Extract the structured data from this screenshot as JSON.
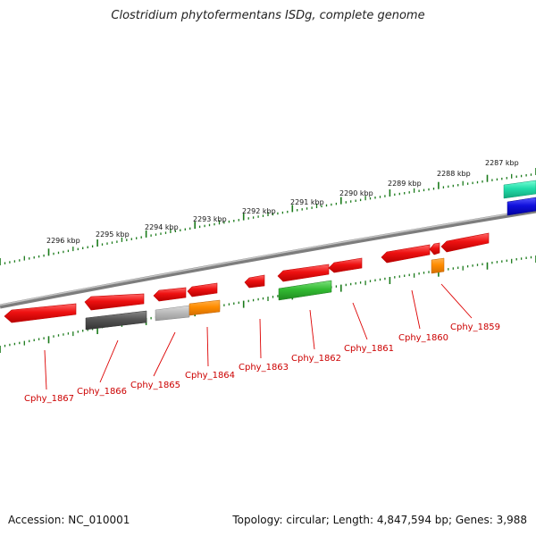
{
  "header": {
    "title": "Clostridium phytofermentans ISDg, complete genome"
  },
  "footer": {
    "accession": "Accession: NC_010001",
    "topology": "Topology: circular; Length: 4,847,594 bp; Genes: 3,988"
  },
  "colors": {
    "backbone": "#8a8a8a",
    "ticks": "#1a7a1a",
    "label": "#cc0000",
    "leader": "#dd0000",
    "red": "#ee1111",
    "darkgray": "#555555",
    "lightgray": "#bbbbbb",
    "orange": "#ff8c00",
    "green": "#33bb33",
    "teal": "#22ddaa",
    "blue": "#1111dd"
  },
  "ruler": {
    "unit": "kbp",
    "labels": [
      {
        "kbp": 2296,
        "text": "2296 kbp"
      },
      {
        "kbp": 2295,
        "text": "2295 kbp"
      },
      {
        "kbp": 2294,
        "text": "2294 kbp"
      },
      {
        "kbp": 2293,
        "text": "2293 kbp"
      },
      {
        "kbp": 2292,
        "text": "2292 kbp"
      },
      {
        "kbp": 2291,
        "text": "2291 kbp"
      },
      {
        "kbp": 2290,
        "text": "2290 kbp"
      },
      {
        "kbp": 2289,
        "text": "2289 kbp"
      },
      {
        "kbp": 2288,
        "text": "2288 kbp"
      },
      {
        "kbp": 2287,
        "text": "2287 kbp"
      }
    ]
  },
  "gene_labels": [
    {
      "id": "cphy-1867",
      "text": "Cphy_1867"
    },
    {
      "id": "cphy-1866",
      "text": "Cphy_1866"
    },
    {
      "id": "cphy-1865",
      "text": "Cphy_1865"
    },
    {
      "id": "cphy-1864",
      "text": "Cphy_1864"
    },
    {
      "id": "cphy-1863",
      "text": "Cphy_1863"
    },
    {
      "id": "cphy-1862",
      "text": "Cphy_1862"
    },
    {
      "id": "cphy-1861",
      "text": "Cphy_1861"
    },
    {
      "id": "cphy-1860",
      "text": "Cphy_1860"
    },
    {
      "id": "cphy-1859",
      "text": "Cphy_1859"
    }
  ]
}
